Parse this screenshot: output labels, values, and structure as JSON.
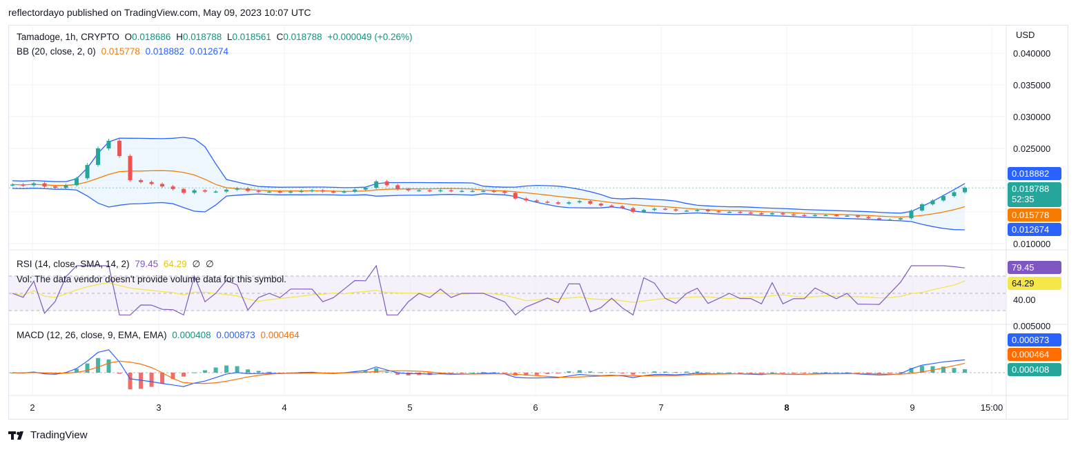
{
  "header": {
    "publisher_text": "reflectordayo published on TradingView.com, May 09, 2023 10:07 UTC"
  },
  "footer": {
    "brand": "TradingView"
  },
  "colors": {
    "up": "#26a69a",
    "down": "#ef5350",
    "bb_basis": "#f57c00",
    "bb_band": "#2962ff",
    "bb_fill": "#e3f2fd",
    "rsi": "#7e57c2",
    "rsi_ma": "#f5e64a",
    "rsi_band": "#ede7f6",
    "macd": "#2962ff",
    "signal": "#ff6d00"
  },
  "price_legend": {
    "symbol": "Tamadoge, 1h, CRYPTO",
    "o_label": "O",
    "o_value": "0.018686",
    "h_label": "H",
    "h_value": "0.018788",
    "l_label": "L",
    "l_value": "0.018561",
    "c_label": "C",
    "c_value": "0.018788",
    "change": "+0.000049 (+0.26%)"
  },
  "bb_legend": {
    "label": "BB (20, close, 2, 0)",
    "basis": "0.015778",
    "upper": "0.018882",
    "lower": "0.012674"
  },
  "rsi_legend": {
    "label": "RSI (14, close, SMA, 14, 2)",
    "rsi": "79.45",
    "ma": "64.29",
    "extra1": "∅",
    "extra2": "∅"
  },
  "vol_note": "Vol: The data vendor doesn't provide volume data for this symbol.",
  "macd_legend": {
    "label": "MACD (12, 26, close, 9, EMA, EMA)",
    "hist": "0.000408",
    "macd": "0.000873",
    "signal": "0.000464"
  },
  "price_axis": {
    "currency": "USD",
    "ticks": [
      "0.040000",
      "0.035000",
      "0.030000",
      "0.025000",
      "0.010000"
    ]
  },
  "price_labels": {
    "upper": "0.018882",
    "last": "0.018788",
    "countdown": "52:35",
    "basis": "0.015778",
    "lower": "0.012674"
  },
  "rsi_axis": {
    "tick": "40.00",
    "rsi_label": "79.45",
    "ma_label": "64.29"
  },
  "macd_axis": {
    "tick": "0.005000",
    "macd_label": "0.000873",
    "signal_label": "0.000464",
    "hist_label": "0.000408"
  },
  "time_axis": {
    "ticks": [
      "2",
      "3",
      "4",
      "5",
      "6",
      "7",
      "8",
      "9",
      "15:00"
    ]
  },
  "chart_data": {
    "type": "candlestick",
    "title": "Tamadoge, 1h, CRYPTO",
    "y_axis": {
      "unit": "USD",
      "range": [
        0.01,
        0.04
      ]
    },
    "x_axis": {
      "ticks": [
        "2",
        "3",
        "4",
        "5",
        "6",
        "7",
        "8",
        "9",
        "15:00"
      ]
    },
    "close_series": [
      0.0193,
      0.0192,
      0.0195,
      0.019,
      0.0188,
      0.0192,
      0.0203,
      0.0224,
      0.025,
      0.0262,
      0.0238,
      0.02,
      0.0197,
      0.0194,
      0.019,
      0.0186,
      0.018,
      0.0184,
      0.0182,
      0.0182,
      0.0185,
      0.0187,
      0.0183,
      0.0182,
      0.0182,
      0.0181,
      0.0182,
      0.0183,
      0.0184,
      0.0182,
      0.0181,
      0.0182,
      0.0185,
      0.0188,
      0.0198,
      0.0192,
      0.0186,
      0.0184,
      0.0184,
      0.0183,
      0.0184,
      0.0183,
      0.0183,
      0.0183,
      0.0183,
      0.0182,
      0.018,
      0.0171,
      0.0168,
      0.0166,
      0.0165,
      0.0163,
      0.0165,
      0.0167,
      0.0163,
      0.016,
      0.0159,
      0.0156,
      0.015,
      0.0153,
      0.0155,
      0.0154,
      0.0152,
      0.0152,
      0.0153,
      0.0151,
      0.015,
      0.015,
      0.0149,
      0.0148,
      0.0146,
      0.0148,
      0.0146,
      0.0145,
      0.0144,
      0.0145,
      0.0145,
      0.0144,
      0.0144,
      0.0142,
      0.014,
      0.0138,
      0.0138,
      0.014,
      0.0152,
      0.0162,
      0.0168,
      0.0175,
      0.0181,
      0.0188
    ],
    "bollinger": {
      "basis": 0.015778,
      "upper": 0.018882,
      "lower": 0.012674
    },
    "rsi": {
      "value": 79.45,
      "ma": 64.29,
      "levels": [
        70,
        50,
        30
      ]
    },
    "macd": {
      "hist": 0.000408,
      "macd": 0.000873,
      "signal": 0.000464
    }
  }
}
